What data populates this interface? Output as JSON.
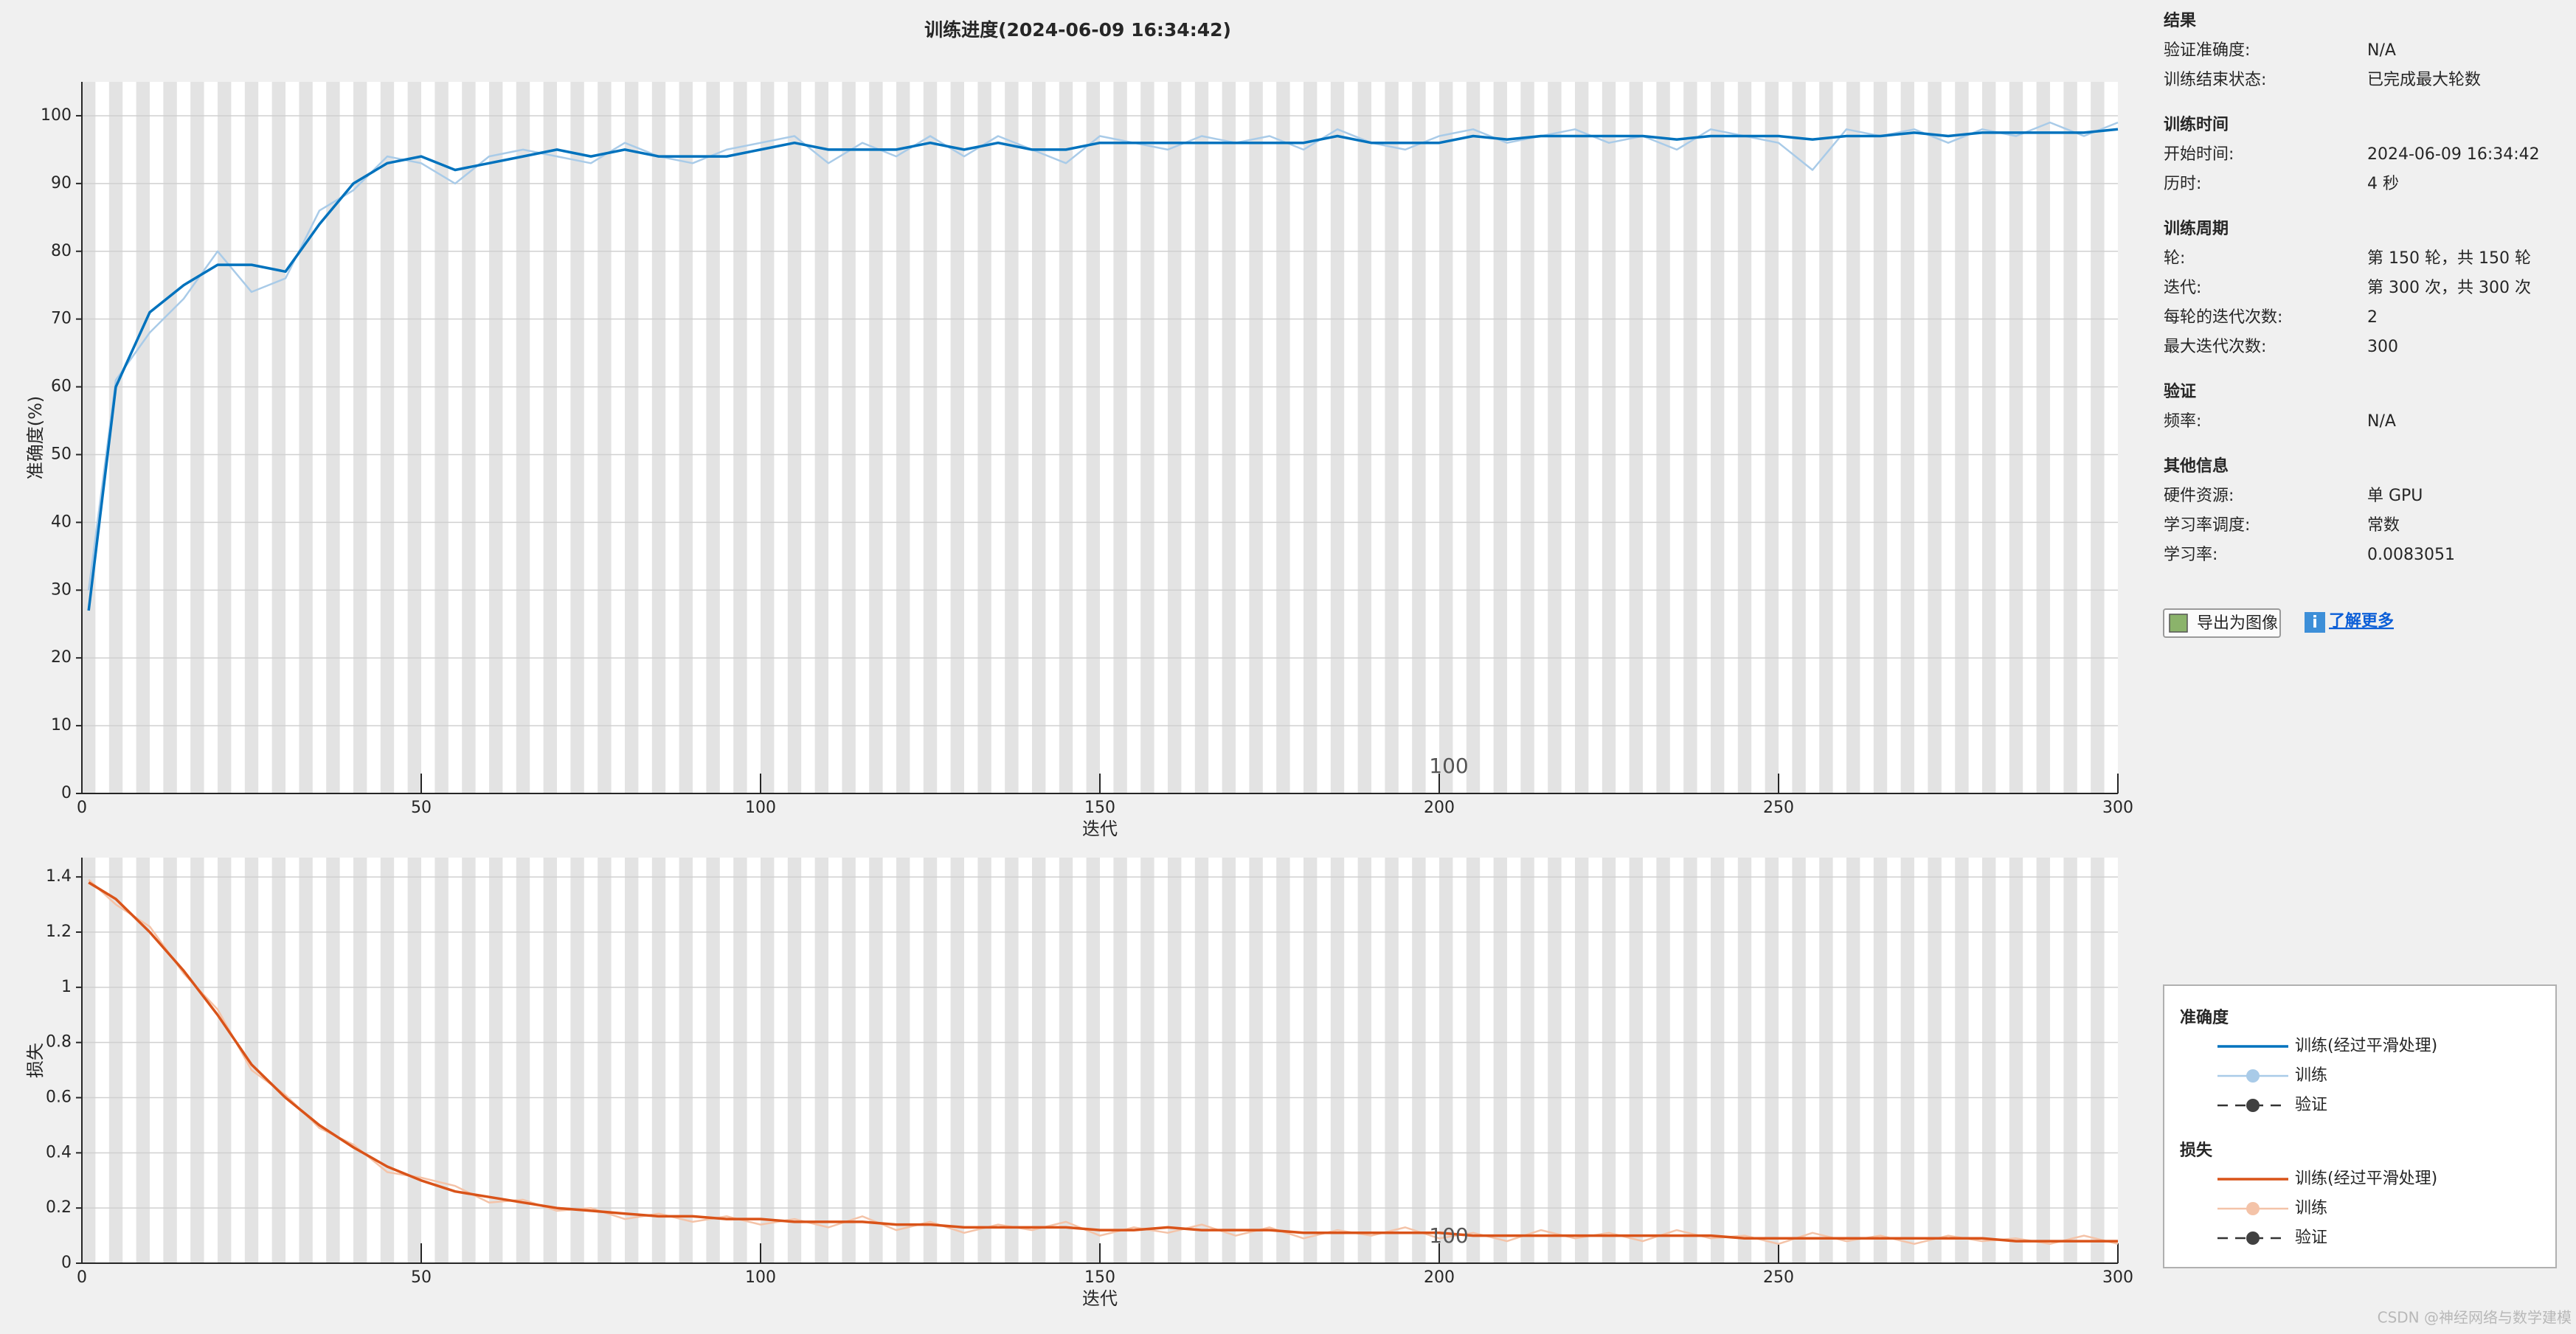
{
  "chart_data": [
    {
      "type": "line",
      "title": "训练进度(2024-06-09 16:34:42)",
      "xlabel": "迭代",
      "ylabel": "准确度(%)",
      "legend_title": "准确度",
      "validation_name": "验证",
      "annotation": "100",
      "xlim": [
        0,
        300
      ],
      "xticks": [
        0,
        50,
        100,
        150,
        200,
        250,
        300
      ],
      "ylim": [
        0,
        105
      ],
      "yticks": [
        0,
        10,
        20,
        30,
        40,
        50,
        60,
        70,
        80,
        90,
        100
      ],
      "grid": true,
      "x": [
        1,
        5,
        10,
        15,
        20,
        25,
        30,
        35,
        40,
        45,
        50,
        55,
        60,
        65,
        70,
        75,
        80,
        85,
        90,
        95,
        100,
        105,
        110,
        115,
        120,
        125,
        130,
        135,
        140,
        145,
        150,
        155,
        160,
        165,
        170,
        175,
        180,
        185,
        190,
        195,
        200,
        205,
        210,
        215,
        220,
        225,
        230,
        235,
        240,
        245,
        250,
        255,
        260,
        265,
        270,
        275,
        280,
        285,
        290,
        295,
        300
      ],
      "series": [
        {
          "name": "训练(经过平滑处理)",
          "color": "#0072bd",
          "width": 3.5,
          "values": [
            27,
            60,
            71,
            75,
            78,
            78,
            77,
            84,
            90,
            93,
            94,
            92,
            93,
            94,
            95,
            94,
            95,
            94,
            94,
            94,
            95,
            96,
            95,
            95,
            95,
            96,
            95,
            96,
            95,
            95,
            96,
            96,
            96,
            96,
            96,
            96,
            96,
            97,
            96,
            96,
            96,
            97,
            96.5,
            97,
            97,
            97,
            97,
            96.5,
            97,
            97,
            97,
            96.5,
            97,
            97,
            97.5,
            97,
            97.5,
            97.5,
            97.5,
            97.5,
            98
          ]
        },
        {
          "name": "训练",
          "color": "#a9cbe8",
          "width": 2.5,
          "values": [
            30,
            61,
            68,
            73,
            80,
            74,
            76,
            86,
            89,
            94,
            93,
            90,
            94,
            95,
            94,
            93,
            96,
            94,
            93,
            95,
            96,
            97,
            93,
            96,
            94,
            97,
            94,
            97,
            95,
            93,
            97,
            96,
            95,
            97,
            96,
            97,
            95,
            98,
            96,
            95,
            97,
            98,
            96,
            97,
            98,
            96,
            97,
            95,
            98,
            97,
            96,
            92,
            98,
            97,
            98,
            96,
            98,
            97,
            99,
            97,
            99
          ]
        }
      ]
    },
    {
      "type": "line",
      "xlabel": "迭代",
      "ylabel": "损失",
      "legend_title": "损失",
      "validation_name": "验证",
      "annotation": "100",
      "xlim": [
        0,
        300
      ],
      "xticks": [
        0,
        50,
        100,
        150,
        200,
        250,
        300
      ],
      "ylim": [
        0,
        1.47
      ],
      "yticks": [
        0,
        0.2,
        0.4,
        0.6,
        0.8,
        1,
        1.2,
        1.4
      ],
      "grid": true,
      "x": [
        1,
        5,
        10,
        15,
        20,
        25,
        30,
        35,
        40,
        45,
        50,
        55,
        60,
        65,
        70,
        75,
        80,
        85,
        90,
        95,
        100,
        105,
        110,
        115,
        120,
        125,
        130,
        135,
        140,
        145,
        150,
        155,
        160,
        165,
        170,
        175,
        180,
        185,
        190,
        195,
        200,
        205,
        210,
        215,
        220,
        225,
        230,
        235,
        240,
        245,
        250,
        255,
        260,
        265,
        270,
        275,
        280,
        285,
        290,
        295,
        300
      ],
      "series": [
        {
          "name": "训练(经过平滑处理)",
          "color": "#d95319",
          "width": 3.5,
          "values": [
            1.38,
            1.32,
            1.2,
            1.06,
            0.9,
            0.72,
            0.6,
            0.5,
            0.42,
            0.35,
            0.3,
            0.26,
            0.24,
            0.22,
            0.2,
            0.19,
            0.18,
            0.17,
            0.17,
            0.16,
            0.16,
            0.15,
            0.15,
            0.15,
            0.14,
            0.14,
            0.13,
            0.13,
            0.13,
            0.13,
            0.12,
            0.12,
            0.13,
            0.12,
            0.12,
            0.12,
            0.11,
            0.11,
            0.11,
            0.11,
            0.11,
            0.1,
            0.1,
            0.1,
            0.1,
            0.1,
            0.1,
            0.1,
            0.1,
            0.09,
            0.09,
            0.09,
            0.09,
            0.09,
            0.09,
            0.09,
            0.09,
            0.08,
            0.08,
            0.08,
            0.08
          ]
        },
        {
          "name": "训练",
          "color": "#f4c3a8",
          "width": 2.5,
          "values": [
            1.39,
            1.3,
            1.22,
            1.05,
            0.92,
            0.7,
            0.61,
            0.49,
            0.43,
            0.33,
            0.31,
            0.28,
            0.22,
            0.23,
            0.19,
            0.2,
            0.16,
            0.18,
            0.15,
            0.17,
            0.14,
            0.16,
            0.13,
            0.17,
            0.12,
            0.15,
            0.11,
            0.14,
            0.12,
            0.15,
            0.1,
            0.13,
            0.11,
            0.14,
            0.1,
            0.13,
            0.09,
            0.12,
            0.1,
            0.13,
            0.09,
            0.11,
            0.08,
            0.12,
            0.09,
            0.11,
            0.08,
            0.12,
            0.09,
            0.1,
            0.07,
            0.11,
            0.08,
            0.1,
            0.07,
            0.1,
            0.08,
            0.09,
            0.07,
            0.1,
            0.07
          ]
        }
      ]
    }
  ],
  "panel": {
    "sections": [
      {
        "title": "结果",
        "rows": [
          [
            "验证准确度:",
            "N/A"
          ],
          [
            "训练结束状态:",
            "已完成最大轮数"
          ]
        ]
      },
      {
        "title": "训练时间",
        "rows": [
          [
            "开始时间:",
            "2024-06-09 16:34:42"
          ],
          [
            "历时:",
            "4 秒"
          ]
        ]
      },
      {
        "title": "训练周期",
        "rows": [
          [
            "轮:",
            "第 150 轮，共 150 轮"
          ],
          [
            "迭代:",
            "第 300 次，共 300 次"
          ],
          [
            "每轮的迭代次数:",
            "2"
          ],
          [
            "最大迭代次数:",
            "300"
          ]
        ]
      },
      {
        "title": "验证",
        "rows": [
          [
            "频率:",
            "N/A"
          ]
        ]
      },
      {
        "title": "其他信息",
        "rows": [
          [
            "硬件资源:",
            "单 GPU"
          ],
          [
            "学习率调度:",
            "常数"
          ],
          [
            "学习率:",
            "0.0083051"
          ]
        ]
      }
    ],
    "export_button": "导出为图像",
    "learn_more": "了解更多"
  },
  "watermark": "CSDN @神经网络与数学建模"
}
